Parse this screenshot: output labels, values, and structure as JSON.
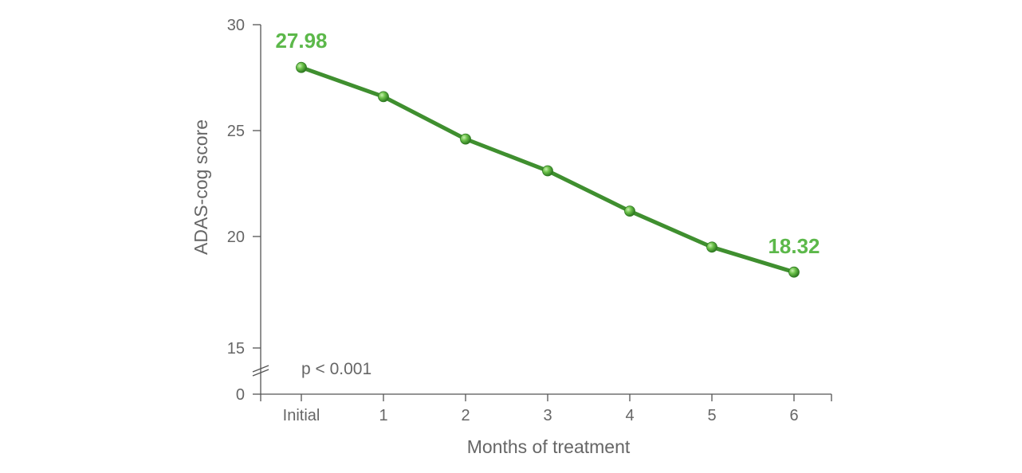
{
  "chart_data": {
    "type": "line",
    "categories": [
      "Initial",
      "1",
      "2",
      "3",
      "4",
      "5",
      "6"
    ],
    "series": [
      {
        "values": [
          27.98,
          26.6,
          24.6,
          23.1,
          21.2,
          19.5,
          18.32
        ]
      }
    ],
    "xlabel": "Months of treatment",
    "ylabel": "ADAS-cog score",
    "y_ticks": [
      "30",
      "25",
      "20",
      "15",
      "0"
    ],
    "ylim": [
      0,
      30
    ],
    "axis_break": "between 15 and 0",
    "data_labels": {
      "first": "27.98",
      "last": "18.32"
    },
    "annotation": "p < 0.001",
    "grid": false,
    "colors": {
      "line": "#3f8f2f",
      "label": "#5cb84a",
      "axis": "#555555",
      "text": "#666666"
    }
  }
}
